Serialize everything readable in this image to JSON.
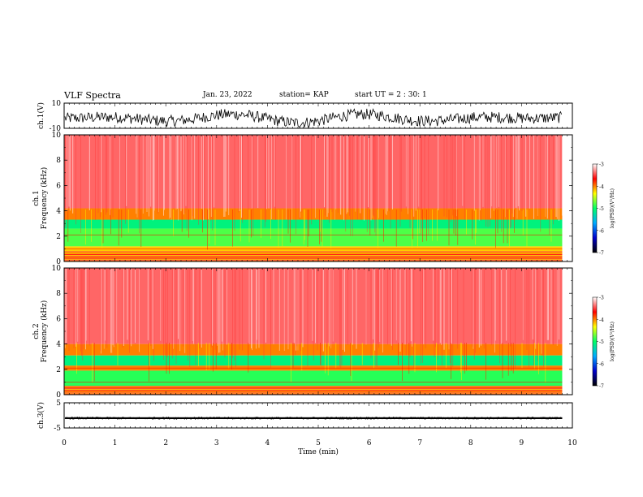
{
  "header": {
    "title": "VLF Spectra",
    "date": "Jan. 23, 2022",
    "station": "station= KAP",
    "start": "start  UT =   2 : 30: 1"
  },
  "chart_data": [
    {
      "type": "line",
      "panel": "ch1-waveform",
      "ylabel": "ch.1(V)",
      "ylim": [
        -10,
        10
      ],
      "yticks": [
        "10",
        "-10"
      ],
      "xlim": [
        0,
        10
      ],
      "approx_envelope": {
        "upper": [
          6,
          9
        ],
        "lower": [
          -8,
          -3
        ]
      }
    },
    {
      "type": "heatmap",
      "panel": "ch1-spectrogram",
      "ylabel": "ch.1\nFrequency  (kHz)",
      "ylim": [
        0,
        10
      ],
      "yticks": [
        "0",
        "2",
        "4",
        "6",
        "8",
        "10"
      ],
      "xlim": [
        0,
        10
      ],
      "data_end_min": 9.8,
      "bands_khz": [
        {
          "from": 0.0,
          "to": 0.8,
          "level": "mixed red/yellow lines"
        },
        {
          "from": 0.8,
          "to": 1.2,
          "level": -4.2
        },
        {
          "from": 1.2,
          "to": 2.6,
          "level": -4.8
        },
        {
          "from": 2.6,
          "to": 3.3,
          "level": -5.1
        },
        {
          "from": 3.3,
          "to": 4.2,
          "level": -4.0
        },
        {
          "from": 4.2,
          "to": 10.0,
          "level": -3.4
        }
      ]
    },
    {
      "type": "heatmap",
      "panel": "ch2-spectrogram",
      "ylabel": "ch.2\nFrequency  (kHz)",
      "ylim": [
        0,
        10
      ],
      "yticks": [
        "0",
        "2",
        "4",
        "6",
        "8",
        "10"
      ],
      "xlim": [
        0,
        10
      ],
      "data_end_min": 9.8,
      "bands_khz": [
        {
          "from": 0.0,
          "to": 0.7,
          "level": "mixed red/yellow lines"
        },
        {
          "from": 0.7,
          "to": 1.9,
          "level": -4.9
        },
        {
          "from": 1.9,
          "to": 2.3,
          "level": -4.0
        },
        {
          "from": 2.3,
          "to": 3.1,
          "level": -5.1
        },
        {
          "from": 3.1,
          "to": 4.0,
          "level": -4.0
        },
        {
          "from": 4.0,
          "to": 10.0,
          "level": -3.4
        }
      ]
    },
    {
      "type": "line",
      "panel": "ch3-waveform",
      "ylabel": "ch.3(V)",
      "ylim": [
        -5,
        5
      ],
      "yticks": [
        "5",
        "-5"
      ],
      "xlim": [
        0,
        10
      ],
      "approx_envelope": {
        "upper": [
          -0.8,
          -0.8
        ],
        "lower": [
          -1.4,
          -1.4
        ]
      },
      "xlabel": "Time  (min)",
      "xticks": [
        "0",
        "1",
        "2",
        "3",
        "4",
        "5",
        "6",
        "7",
        "8",
        "9",
        "10"
      ]
    }
  ],
  "colorbar": {
    "label": "log(PSD)(V²/Hz)",
    "range": [
      -7,
      -3
    ],
    "ticks": [
      "-3",
      "-4",
      "-5",
      "-6",
      "-7"
    ],
    "stops": [
      "#000000",
      "#0000cc",
      "#00aaff",
      "#00ff66",
      "#ffff00",
      "#ff0000",
      "#ffffff"
    ]
  }
}
